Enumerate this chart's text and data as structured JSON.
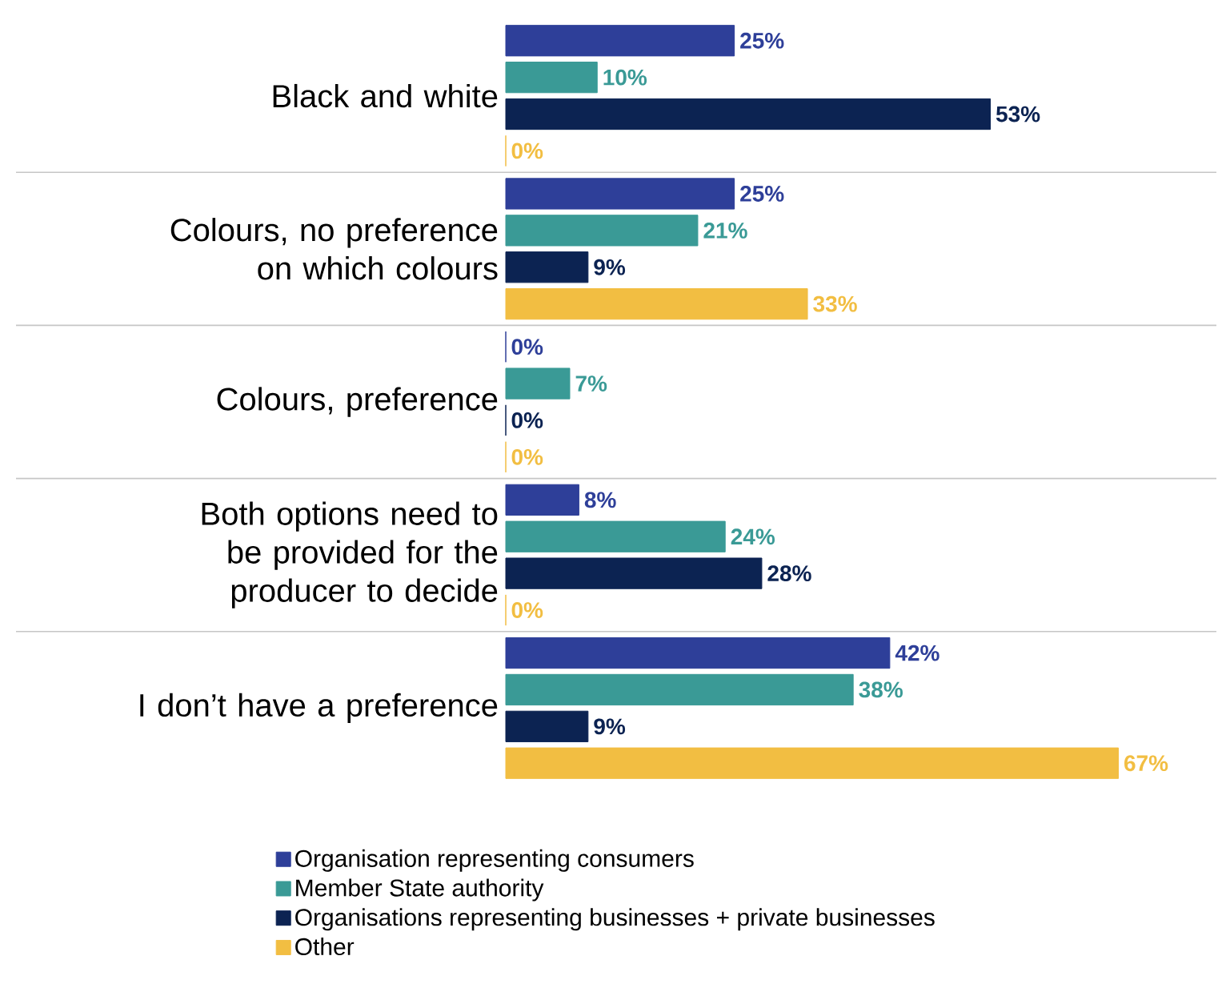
{
  "chart_data": {
    "type": "bar",
    "orientation": "horizontal",
    "categories": [
      "Black and white",
      "Colours, no preference on which colours",
      "Colours, preference",
      "Both options need to be provided for the producer to decide",
      "I don’t have a preference"
    ],
    "series": [
      {
        "name": "Organisation representing consumers",
        "color": "#2e3f99",
        "values": [
          25,
          25,
          0,
          8,
          42
        ],
        "value_labels": [
          "25%",
          "25%",
          "0%",
          "8%",
          "42%"
        ]
      },
      {
        "name": "Member State authority",
        "color": "#3a9a96",
        "values": [
          10,
          21,
          7,
          24,
          38
        ],
        "value_labels": [
          "10%",
          "21%",
          "7%",
          "24%",
          "38%"
        ]
      },
      {
        "name": "Organisations representing businesses + private businesses",
        "color": "#0c2352",
        "values": [
          53,
          9,
          0,
          28,
          9
        ],
        "value_labels": [
          "53%",
          "9%",
          "0%",
          "28%",
          "9%"
        ]
      },
      {
        "name": "Other",
        "color": "#f2be42",
        "values": [
          0,
          33,
          0,
          0,
          67
        ],
        "value_labels": [
          "0%",
          "33%",
          "0%",
          "0%",
          "67%"
        ]
      }
    ],
    "grid": "y",
    "legend": "bottom"
  }
}
